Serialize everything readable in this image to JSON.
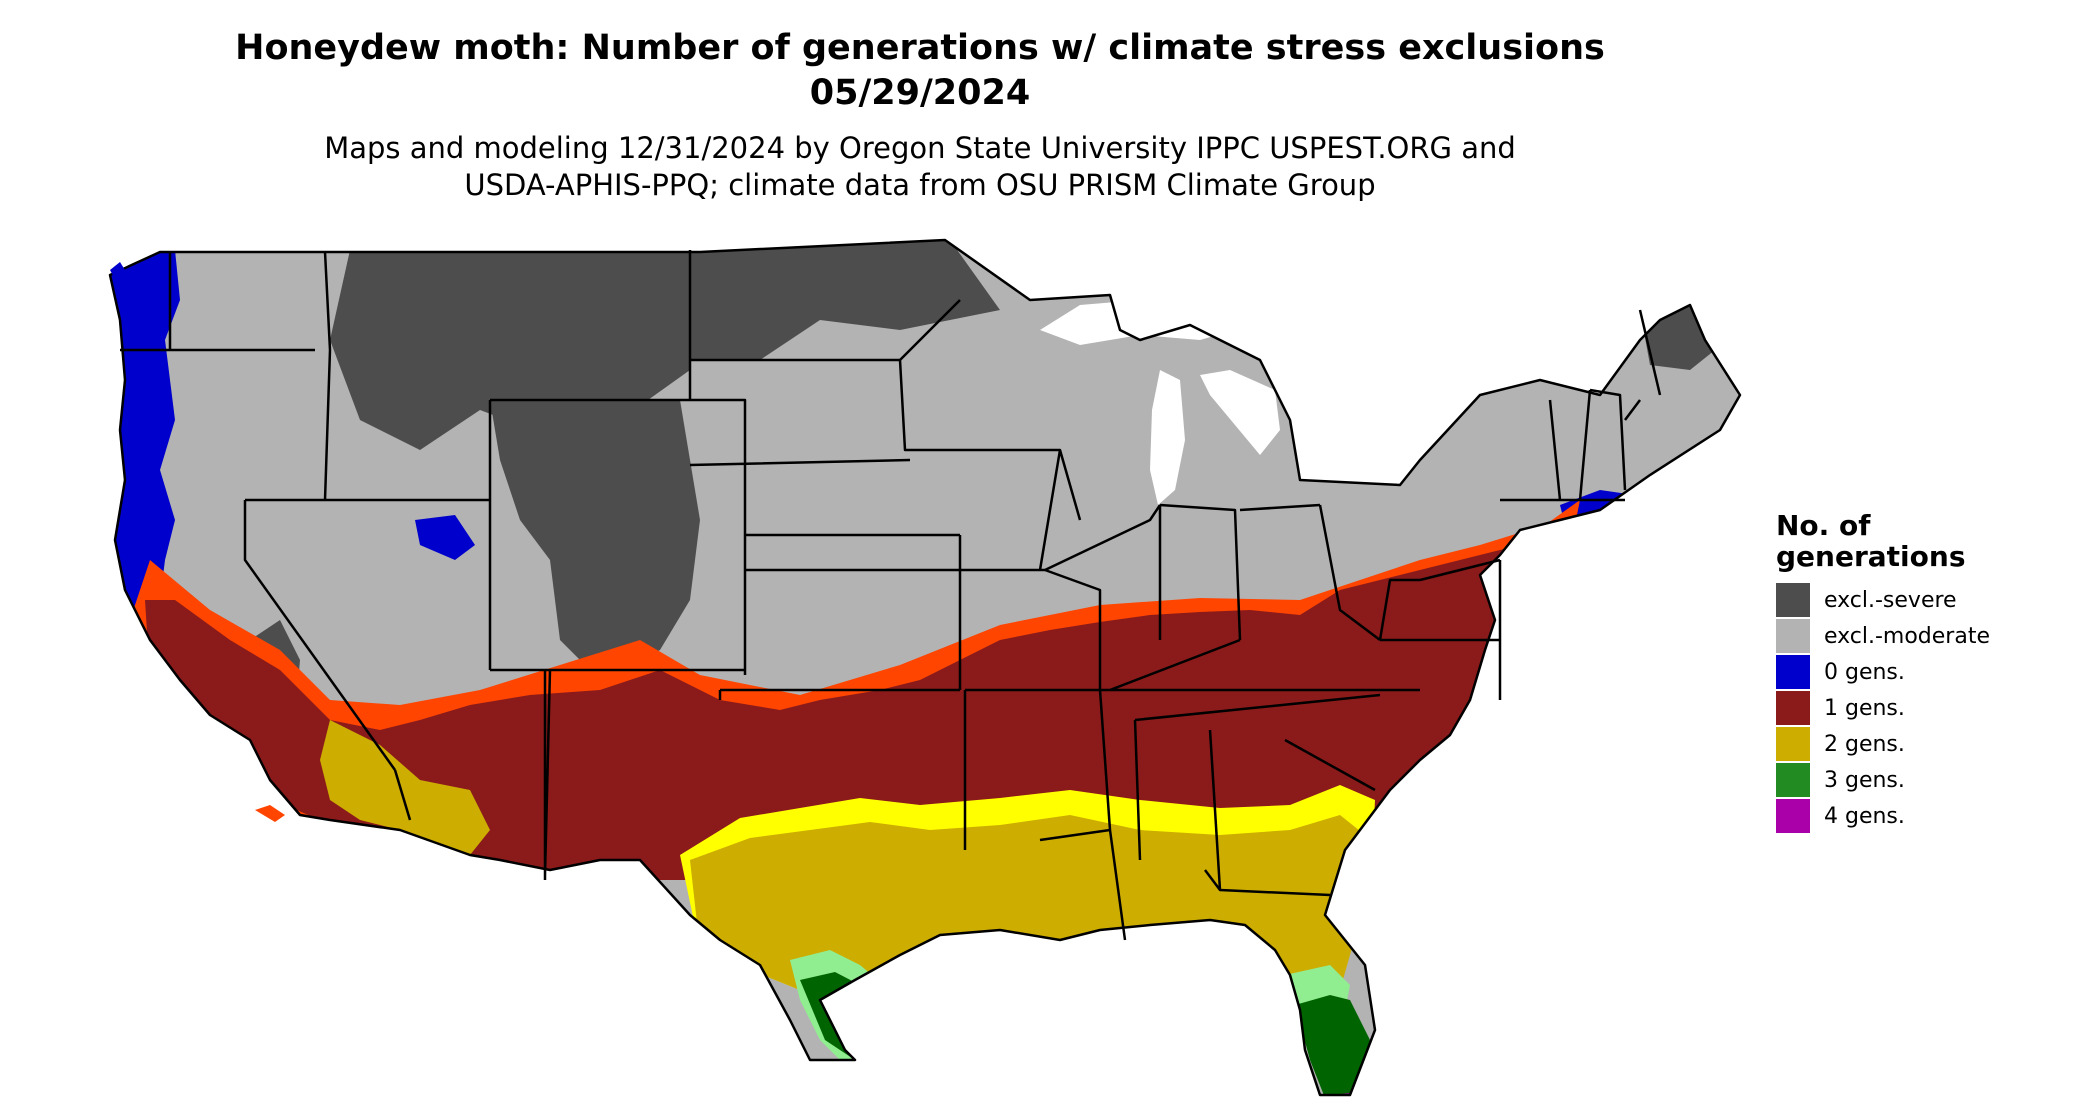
{
  "title": {
    "line1": "Honeydew moth: Number of generations w/ climate stress exclusions",
    "line2": "05/29/2024"
  },
  "subtitle": {
    "line1": "Maps and modeling 12/31/2024 by Oregon State University IPPC USPEST.ORG and",
    "line2": "USDA-APHIS-PPQ; climate data from OSU PRISM Climate Group"
  },
  "legend": {
    "title_line1": "No. of",
    "title_line2": "generations",
    "items": [
      {
        "label": "excl.-severe",
        "color": "#4d4d4d"
      },
      {
        "label": "excl.-moderate",
        "color": "#b3b3b3"
      },
      {
        "label": "0 gens.",
        "color": "#0000cc"
      },
      {
        "label": "1 gens.",
        "color": "#8b1a1a"
      },
      {
        "label": "2 gens.",
        "color": "#cdad00"
      },
      {
        "label": "3 gens.",
        "color": "#228b22"
      },
      {
        "label": "4 gens.",
        "color": "#aa00aa"
      }
    ]
  },
  "map_colors": {
    "excl_severe": "#4d4d4d",
    "excl_moderate": "#b3b3b3",
    "gens_0": "#0000cc",
    "gens_1": "#8b1a1a",
    "gens_1_edge": "#ff4500",
    "gens_2": "#cdad00",
    "gens_2_edge": "#ffff00",
    "gens_3": "#006400",
    "gens_3_edge": "#90ee90",
    "gens_4": "#aa00aa",
    "water": "#ffffff",
    "border": "#000000"
  }
}
